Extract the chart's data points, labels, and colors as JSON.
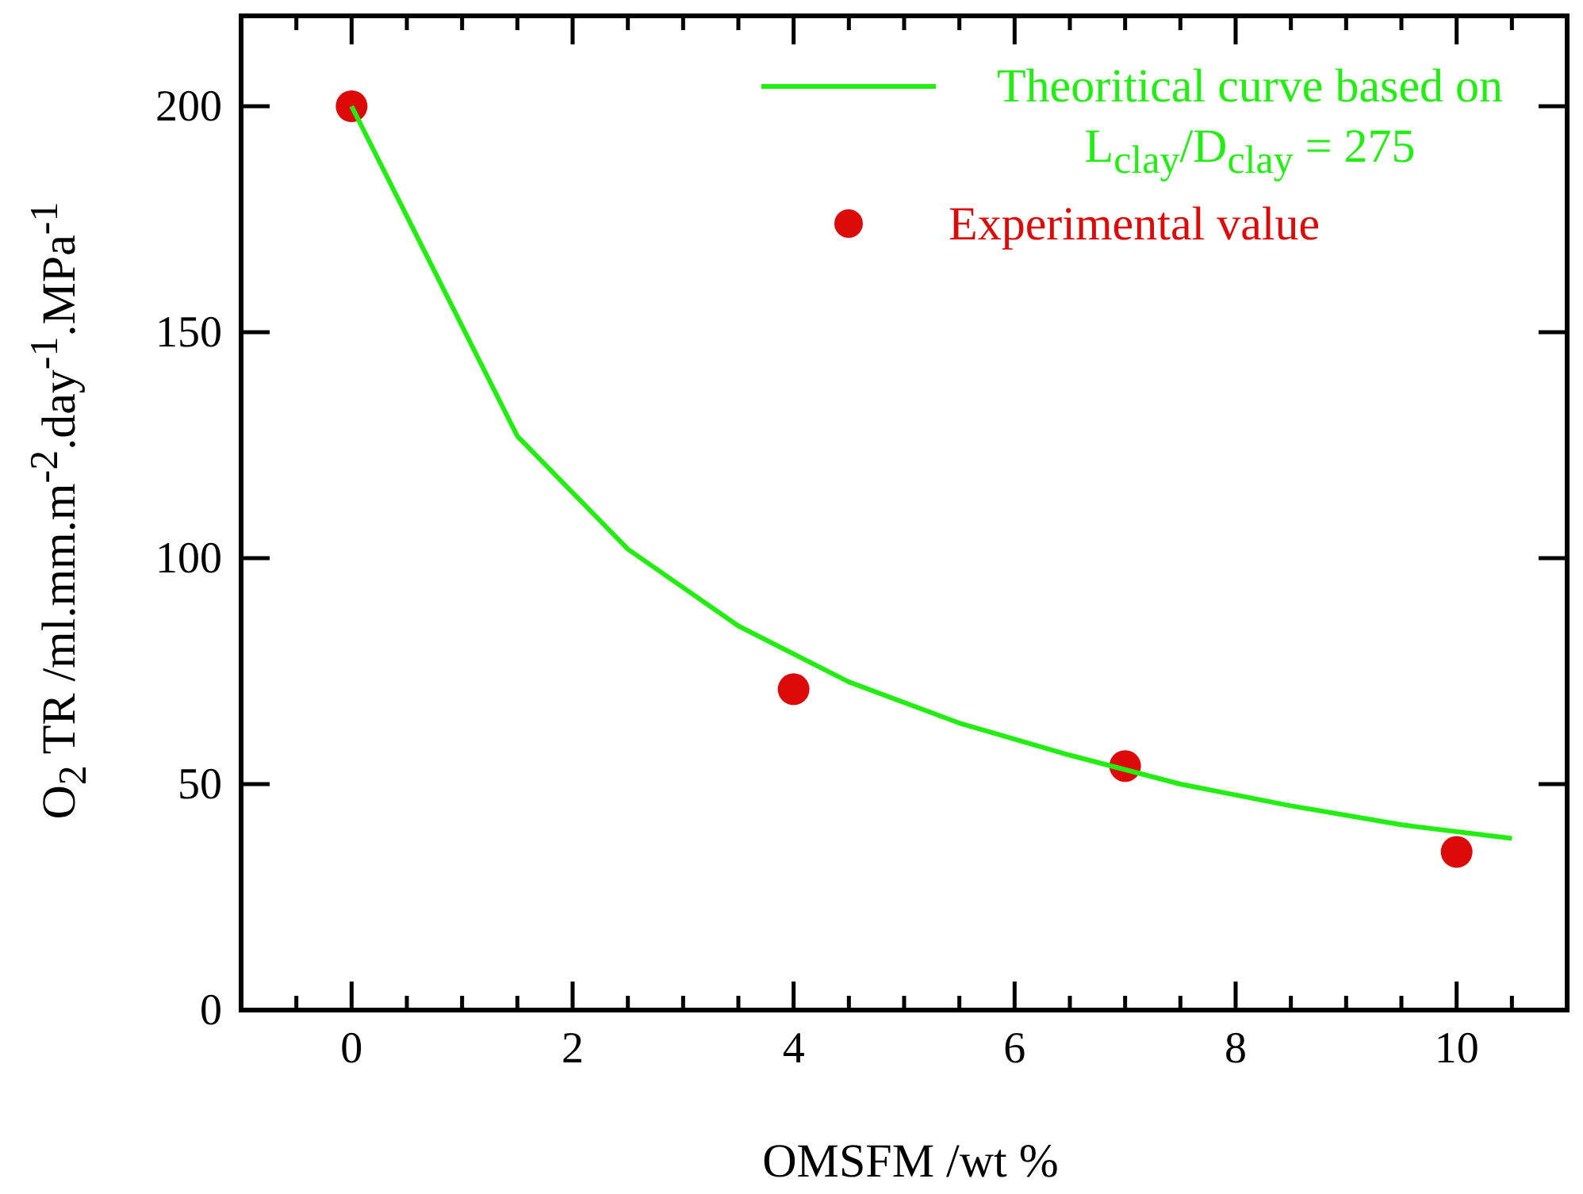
{
  "chart_data": {
    "type": "line",
    "xlabel": "OMSFM /wt %",
    "ylabel": "O$_{2}$ TR /ml.mm.m$^{-2}$.day$^{-1}$.MPa$^{-1}$",
    "xlim": [
      -1,
      11
    ],
    "xticks": [
      0,
      2,
      4,
      6,
      8,
      10
    ],
    "ylim": [
      0,
      220
    ],
    "yticks": [
      0,
      50,
      100,
      150,
      200
    ],
    "grid": false,
    "legend": "top right",
    "series": [
      {
        "name": "Theoritical curve based on L$_{clay}$/D$_{clay}$ = 275",
        "color": "#22ee11",
        "marker": "none",
        "x": [
          0,
          1.5,
          2.5,
          3.5,
          4.5,
          5.5,
          6.5,
          7.5,
          8.5,
          9.5,
          10.5
        ],
        "values": [
          200,
          127,
          102,
          85,
          72.6,
          63.5,
          56.4,
          50,
          45.2,
          41,
          38
        ]
      },
      {
        "name": "Experimental value",
        "type": "scatter",
        "color": "#dd0a0a",
        "marker": "circle",
        "x": [
          0,
          4,
          7,
          10
        ],
        "values": [
          200,
          71,
          54,
          35
        ]
      }
    ]
  }
}
